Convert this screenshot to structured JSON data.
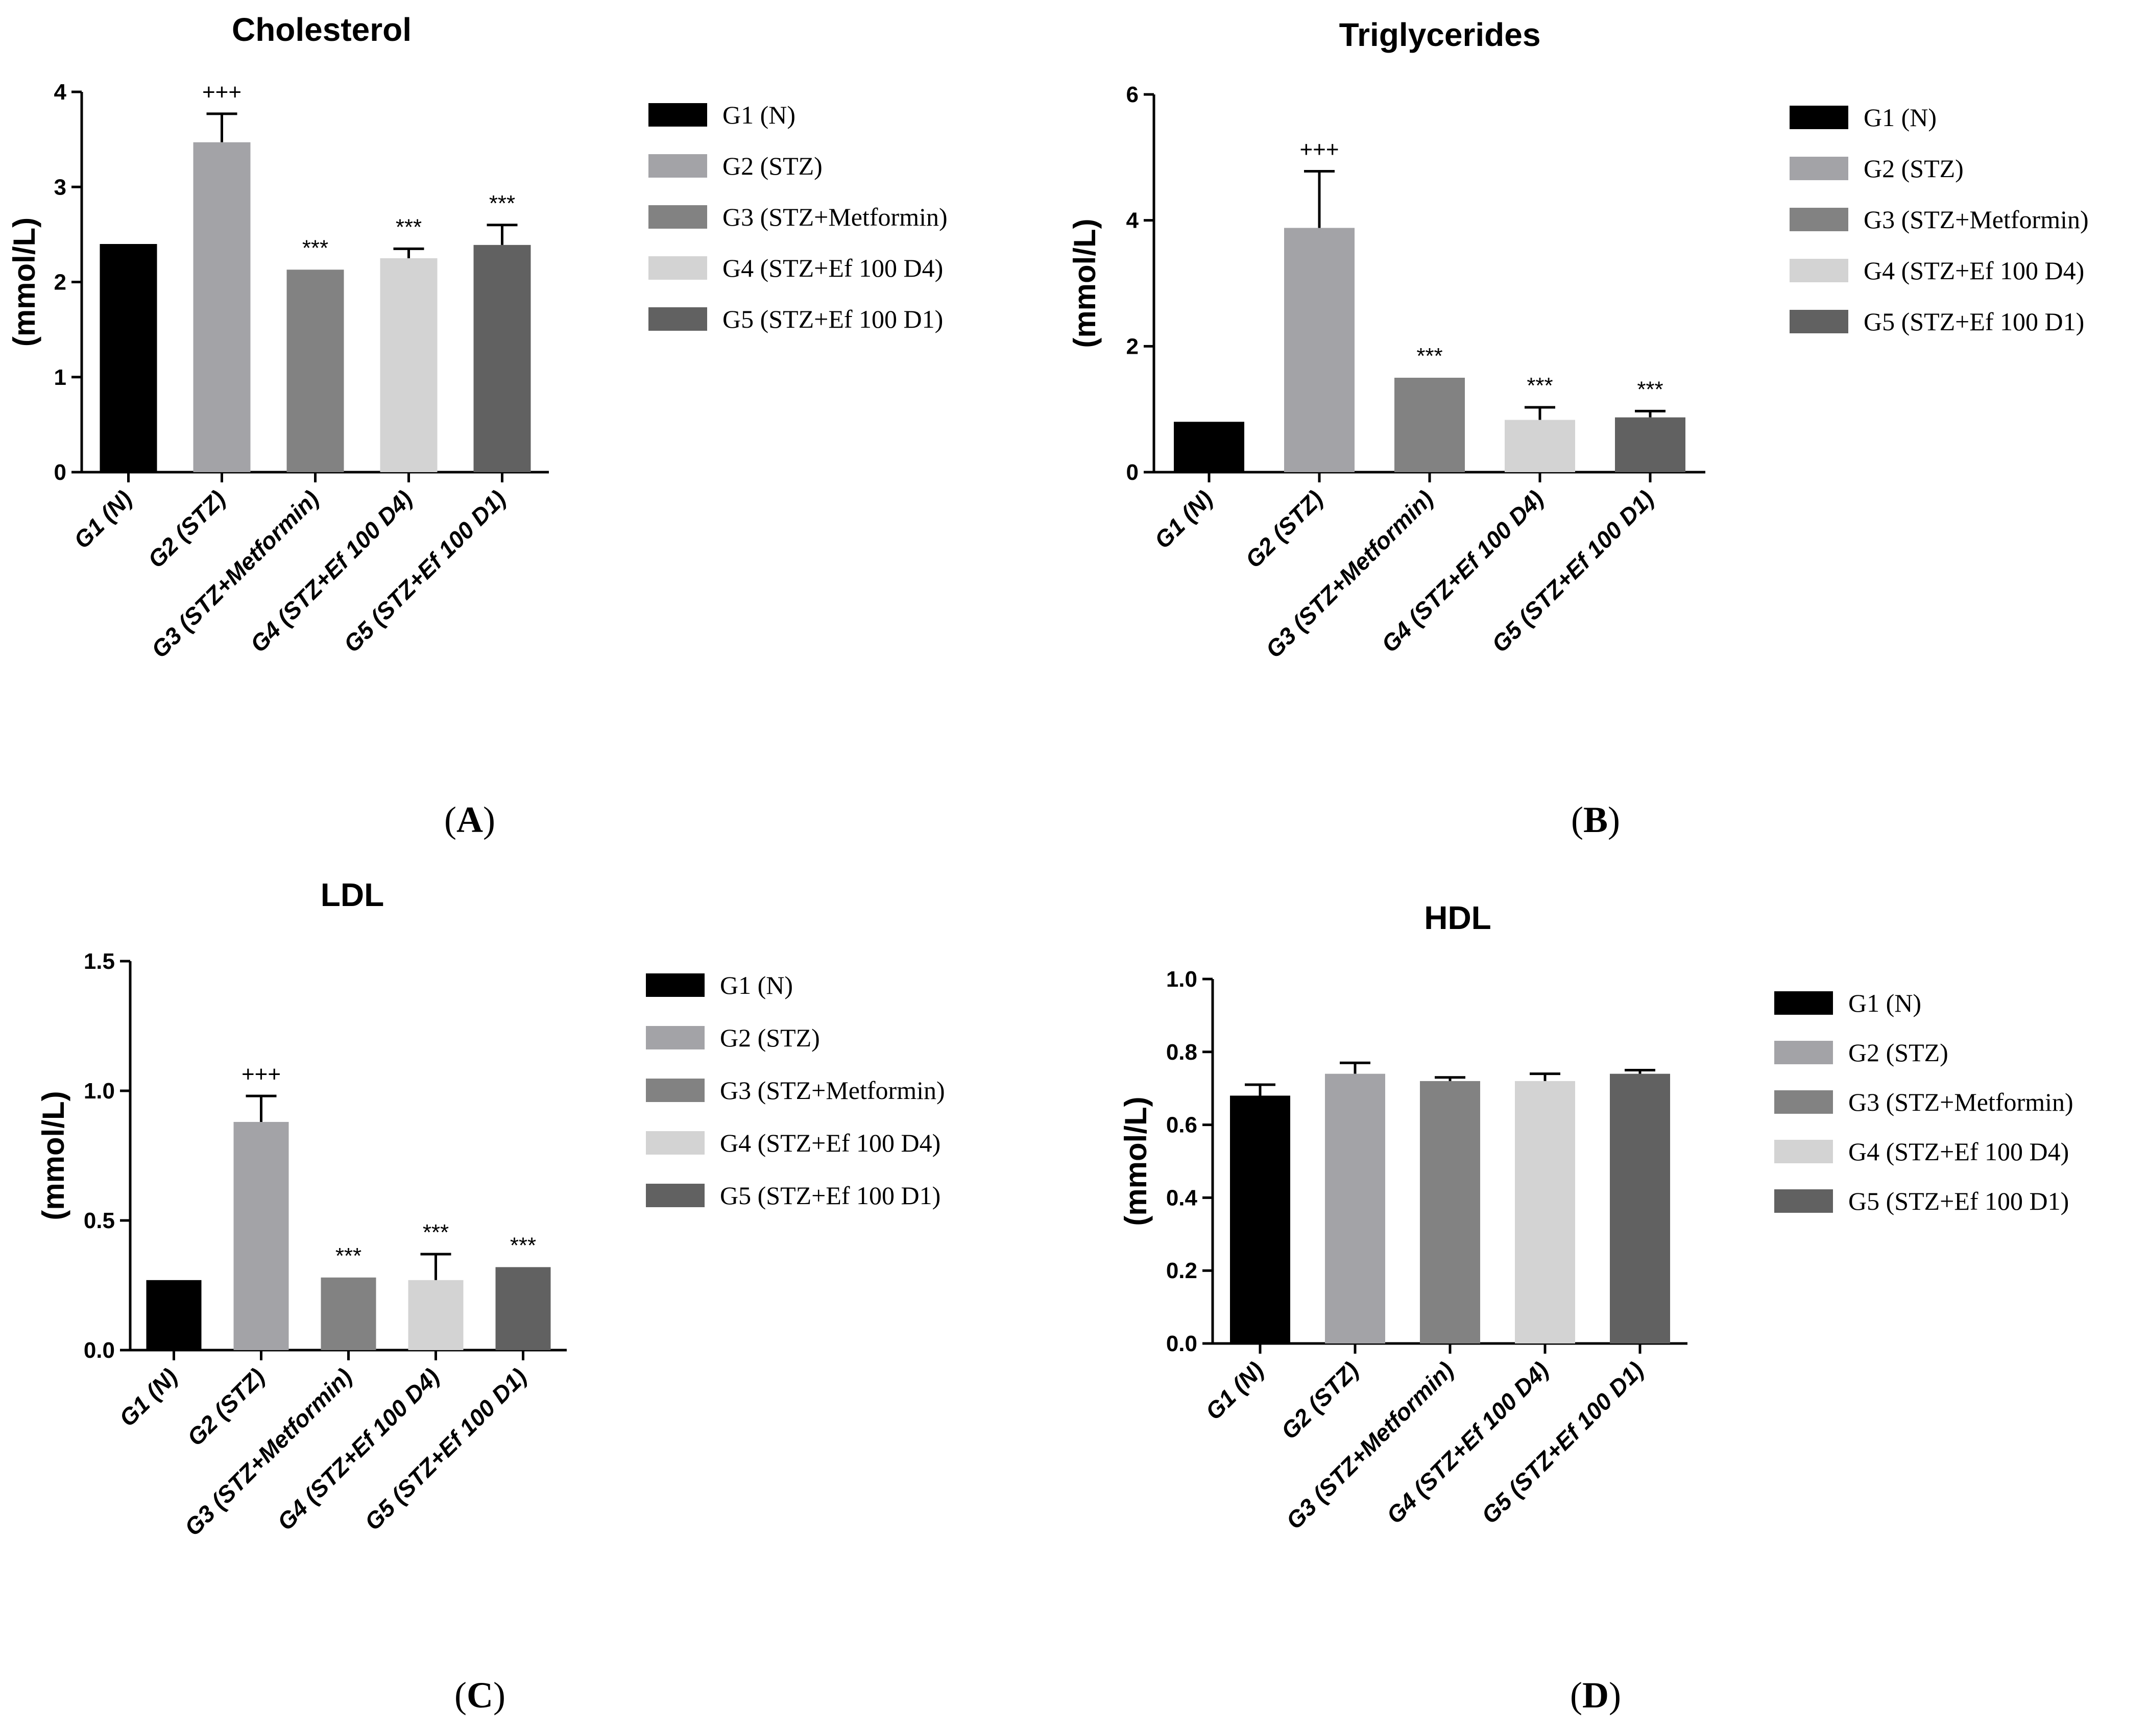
{
  "chart_data": [
    {
      "type": "bar",
      "panel_label": "A",
      "title": "Cholesterol",
      "xlabel": "",
      "ylabel": "(mmol/L)",
      "ylim": [
        0,
        4
      ],
      "yticks": [
        0,
        1,
        2,
        3,
        4
      ],
      "ytick_labels": [
        "0",
        "1",
        "2",
        "3",
        "4"
      ],
      "categories": [
        "G1 (N)",
        "G2 (STZ)",
        "G3 (STZ+Metformin)",
        "G4 (STZ+Ef 100 D4)",
        "G5 (STZ+Ef 100 D1)"
      ],
      "values": [
        2.4,
        3.47,
        2.13,
        2.25,
        2.39
      ],
      "errors": [
        0,
        0.3,
        0,
        0.1,
        0.21
      ],
      "annotations": [
        "",
        "+++",
        "***",
        "***",
        "***"
      ],
      "colors": [
        "#000000",
        "#a3a3a7",
        "#828282",
        "#d3d3d3",
        "#616161"
      ],
      "legend": [
        "G1 (N)",
        "G2 (STZ)",
        "G3 (STZ+Metformin)",
        "G4 (STZ+Ef 100 D4)",
        "G5 (STZ+Ef 100 D1)"
      ],
      "legend_position": "right"
    },
    {
      "type": "bar",
      "panel_label": "B",
      "title": "Triglycerides",
      "xlabel": "",
      "ylabel": "(mmol/L)",
      "ylim": [
        0,
        6
      ],
      "yticks": [
        0,
        2,
        4,
        6
      ],
      "ytick_labels": [
        "0",
        "2",
        "4",
        "6"
      ],
      "categories": [
        "G1 (N)",
        "G2 (STZ)",
        "G3 (STZ+Metformin)",
        "G4 (STZ+Ef 100 D4)",
        "G5 (STZ+Ef 100 D1)"
      ],
      "values": [
        0.8,
        3.88,
        1.5,
        0.83,
        0.87
      ],
      "errors": [
        0,
        0.9,
        0,
        0.2,
        0.1
      ],
      "annotations": [
        "",
        "+++",
        "***",
        "***",
        "***"
      ],
      "colors": [
        "#000000",
        "#a3a3a7",
        "#828282",
        "#d3d3d3",
        "#616161"
      ],
      "legend": [
        "G1 (N)",
        "G2 (STZ)",
        "G3 (STZ+Metformin)",
        "G4 (STZ+Ef 100 D4)",
        "G5 (STZ+Ef 100 D1)"
      ],
      "legend_position": "right"
    },
    {
      "type": "bar",
      "panel_label": "C",
      "title": "LDL",
      "xlabel": "",
      "ylabel": "(mmol/L)",
      "ylim": [
        0,
        1.5
      ],
      "yticks": [
        0,
        0.5,
        1.0,
        1.5
      ],
      "ytick_labels": [
        "0.0",
        "0.5",
        "1.0",
        "1.5"
      ],
      "categories": [
        "G1 (N)",
        "G2 (STZ)",
        "G3 (STZ+Metformin)",
        "G4 (STZ+Ef 100 D4)",
        "G5 (STZ+Ef 100 D1)"
      ],
      "values": [
        0.27,
        0.88,
        0.28,
        0.27,
        0.32
      ],
      "errors": [
        0,
        0.1,
        0,
        0.1,
        0
      ],
      "annotations": [
        "",
        "+++",
        "***",
        "***",
        "***"
      ],
      "colors": [
        "#000000",
        "#a3a3a7",
        "#828282",
        "#d3d3d3",
        "#616161"
      ],
      "legend": [
        "G1 (N)",
        "G2 (STZ)",
        "G3 (STZ+Metformin)",
        "G4 (STZ+Ef 100 D4)",
        "G5 (STZ+Ef 100 D1)"
      ],
      "legend_position": "right"
    },
    {
      "type": "bar",
      "panel_label": "D",
      "title": "HDL",
      "xlabel": "",
      "ylabel": "(mmol/L)",
      "ylim": [
        0,
        1.0
      ],
      "yticks": [
        0,
        0.2,
        0.4,
        0.6,
        0.8,
        1.0
      ],
      "ytick_labels": [
        "0.0",
        "0.2",
        "0.4",
        "0.6",
        "0.8",
        "1.0"
      ],
      "categories": [
        "G1 (N)",
        "G2 (STZ)",
        "G3 (STZ+Metformin)",
        "G4 (STZ+Ef 100 D4)",
        "G5 (STZ+Ef 100 D1)"
      ],
      "values": [
        0.68,
        0.74,
        0.72,
        0.72,
        0.74
      ],
      "errors": [
        0.03,
        0.03,
        0.01,
        0.02,
        0.01
      ],
      "annotations": [
        "",
        "",
        "",
        "",
        ""
      ],
      "colors": [
        "#000000",
        "#a3a3a7",
        "#828282",
        "#d3d3d3",
        "#616161"
      ],
      "legend": [
        "G1 (N)",
        "G2 (STZ)",
        "G3 (STZ+Metformin)",
        "G4 (STZ+Ef 100 D4)",
        "G5 (STZ+Ef 100 D1)"
      ],
      "legend_position": "right"
    }
  ]
}
